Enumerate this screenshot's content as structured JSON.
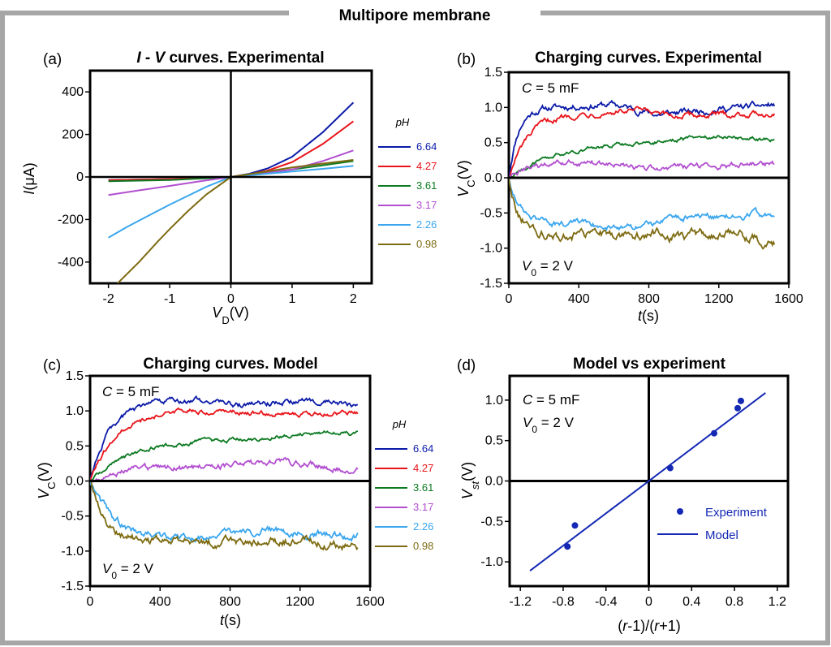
{
  "figure_title": "Multipore membrane",
  "colors": {
    "frame": "#a6a6a6",
    "ph_6_64": "#0a1aa8",
    "ph_4_27": "#e8141a",
    "ph_3_61": "#0d7a22",
    "ph_3_17": "#b24fd0",
    "ph_2_26": "#3aa6ee",
    "ph_0_98": "#7d6b12",
    "model_vs_experiment": "#1428b4"
  },
  "panels": [
    {
      "letter": "(a)",
      "title_italic": "I - V",
      "title": " curves. Experimental",
      "xlabel": "V",
      "xlabel_sub": "D",
      "xlabel_unit": "(V)",
      "ylabel": "I",
      "ylabel_unit": "(μA)",
      "legend_title": "pH"
    },
    {
      "letter": "(b)",
      "title": "Charging curves. Experimental",
      "xlabel": "t",
      "xlabel_unit": "(s)",
      "ylabel": "V",
      "ylabel_sub": "C",
      "ylabel_unit": "(V)",
      "annot_top_italic": "C",
      "annot_top": " = 5 mF",
      "annot_bottom": "V",
      "annot_bottom_sub": "0",
      "annot_bottom_rest": " = 2 V"
    },
    {
      "letter": "(c)",
      "title": "Charging curves. Model",
      "xlabel": "t",
      "xlabel_unit": "(s)",
      "ylabel": "V",
      "ylabel_sub": "C",
      "ylabel_unit": "(V)",
      "annot_top_italic": "C",
      "annot_top": " = 5 mF",
      "annot_bottom": "V",
      "annot_bottom_sub": "0",
      "annot_bottom_rest": " = 2 V",
      "legend_title": "pH"
    },
    {
      "letter": "(d)",
      "title": "Model vs experiment",
      "xlabel_p1": "(",
      "xlabel_r1": "r",
      "xlabel_p2": "-1)/(",
      "xlabel_r2": "r",
      "xlabel_p3": "+1)",
      "ylabel": "V",
      "ylabel_sub": "st",
      "ylabel_unit": "(V)",
      "annot_top_italic": "C",
      "annot_top": " = 5 mF",
      "annot_bottom": "V",
      "annot_bottom_sub": "0",
      "annot_bottom_rest": " = 2 V",
      "legend_points": "Experiment",
      "legend_line": "Model"
    }
  ],
  "chart_data": [
    {
      "type": "line",
      "xlim": [
        -2.3,
        2.3
      ],
      "ylim": [
        -500,
        500
      ],
      "xticks": [
        "-2",
        "-1",
        "0",
        "1",
        "2"
      ],
      "xtick_values": [
        -2,
        -1,
        0,
        1,
        2
      ],
      "yticks": [
        "400",
        "200",
        "0",
        "-200",
        "-400"
      ],
      "ytick_values": [
        400,
        200,
        0,
        -200,
        -400
      ],
      "series": [
        {
          "name": "6.64",
          "color": "#0a1aa8",
          "points": [
            [
              -2,
              -15
            ],
            [
              -1,
              -10
            ],
            [
              -0.3,
              -4
            ],
            [
              0,
              0
            ],
            [
              0.3,
              15
            ],
            [
              0.6,
              40
            ],
            [
              1,
              95
            ],
            [
              1.5,
              210
            ],
            [
              2,
              350
            ]
          ]
        },
        {
          "name": "4.27",
          "color": "#e8141a",
          "points": [
            [
              -2,
              -15
            ],
            [
              -1,
              -10
            ],
            [
              -0.3,
              -4
            ],
            [
              0,
              0
            ],
            [
              0.3,
              12
            ],
            [
              0.6,
              30
            ],
            [
              1,
              70
            ],
            [
              1.5,
              155
            ],
            [
              2,
              262
            ]
          ]
        },
        {
          "name": "3.61",
          "color": "#0d7a22",
          "points": [
            [
              -2,
              -20
            ],
            [
              -1,
              -14
            ],
            [
              -0.3,
              -5
            ],
            [
              0,
              0
            ],
            [
              0.3,
              10
            ],
            [
              0.6,
              20
            ],
            [
              1,
              35
            ],
            [
              1.5,
              55
            ],
            [
              2,
              75
            ]
          ]
        },
        {
          "name": "3.17",
          "color": "#b24fd0",
          "points": [
            [
              -2,
              -85
            ],
            [
              -1.5,
              -63
            ],
            [
              -1,
              -42
            ],
            [
              -0.5,
              -20
            ],
            [
              0,
              0
            ],
            [
              0.5,
              14
            ],
            [
              1,
              35
            ],
            [
              1.5,
              75
            ],
            [
              2,
              125
            ]
          ]
        },
        {
          "name": "2.26",
          "color": "#3aa6ee",
          "points": [
            [
              -2,
              -285
            ],
            [
              -1.7,
              -235
            ],
            [
              -1.3,
              -175
            ],
            [
              -1,
              -130
            ],
            [
              -0.7,
              -88
            ],
            [
              -0.4,
              -46
            ],
            [
              0,
              0
            ],
            [
              0.5,
              13
            ],
            [
              1,
              26
            ],
            [
              1.5,
              38
            ],
            [
              2,
              52
            ]
          ]
        },
        {
          "name": "0.98",
          "color": "#7d6b12",
          "points": [
            [
              -1.85,
              -500
            ],
            [
              -1.5,
              -400
            ],
            [
              -1.2,
              -305
            ],
            [
              -1,
              -245
            ],
            [
              -0.7,
              -160
            ],
            [
              -0.4,
              -82
            ],
            [
              0,
              0
            ],
            [
              0.5,
              22
            ],
            [
              1,
              45
            ],
            [
              1.5,
              63
            ],
            [
              2,
              80
            ]
          ]
        }
      ]
    },
    {
      "type": "line",
      "xlim": [
        0,
        1600
      ],
      "ylim": [
        -1.5,
        1.5
      ],
      "xticks": [
        "0",
        "400",
        "800",
        "1200",
        "1600"
      ],
      "xtick_values": [
        0,
        400,
        800,
        1200,
        1600
      ],
      "yticks": [
        "1.5",
        "1.0",
        "0.5",
        "0.0",
        "-0.5",
        "-1.0",
        "-1.5"
      ],
      "ytick_values": [
        1.5,
        1.0,
        0.5,
        0.0,
        -0.5,
        -1.0,
        -1.5
      ],
      "t_end": 1520,
      "series": [
        {
          "name": "6.64",
          "color": "#0a1aa8",
          "final": 0.98,
          "tau": 50,
          "noise": 0.04,
          "drift": [
            [
              0,
              0
            ],
            [
              600,
              0.06
            ],
            [
              850,
              -0.08
            ],
            [
              1200,
              0
            ],
            [
              1500,
              0.05
            ]
          ]
        },
        {
          "name": "4.27",
          "color": "#e8141a",
          "final": 0.9,
          "tau": 110,
          "noise": 0.035,
          "drift": [
            [
              0,
              0
            ],
            [
              750,
              0.05
            ],
            [
              900,
              -0.03
            ],
            [
              1500,
              0.02
            ]
          ]
        },
        {
          "name": "3.61",
          "color": "#0d7a22",
          "final": 0.58,
          "tau": 350,
          "noise": 0.025,
          "drift": [
            [
              0,
              0
            ],
            [
              800,
              -0.02
            ],
            [
              1200,
              0.04
            ],
            [
              1500,
              -0.03
            ]
          ]
        },
        {
          "name": "3.17",
          "color": "#b24fd0",
          "final": 0.18,
          "tau": 120,
          "noise": 0.035,
          "drift": [
            [
              0,
              0
            ],
            [
              450,
              0.04
            ],
            [
              800,
              -0.05
            ],
            [
              1500,
              0.02
            ]
          ]
        },
        {
          "name": "2.26",
          "color": "#3aa6ee",
          "final": -0.62,
          "tau": 60,
          "noise": 0.04,
          "drift": [
            [
              0,
              0
            ],
            [
              700,
              -0.08
            ],
            [
              1000,
              0.05
            ],
            [
              1500,
              0.1
            ]
          ]
        },
        {
          "name": "0.98",
          "color": "#7d6b12",
          "final": -0.82,
          "tau": 60,
          "noise": 0.06,
          "drift": [
            [
              0,
              0
            ],
            [
              700,
              0
            ],
            [
              1200,
              0.02
            ],
            [
              1500,
              -0.08
            ]
          ]
        }
      ]
    },
    {
      "type": "line",
      "xlim": [
        0,
        1600
      ],
      "ylim": [
        -1.5,
        1.5
      ],
      "xticks": [
        "0",
        "400",
        "800",
        "1200",
        "1600"
      ],
      "xtick_values": [
        0,
        400,
        800,
        1200,
        1600
      ],
      "yticks": [
        "1.5",
        "1.0",
        "0.5",
        "0.0",
        "-0.5",
        "-1.0",
        "-1.5"
      ],
      "ytick_values": [
        1.5,
        1.0,
        0.5,
        0.0,
        -0.5,
        -1.0,
        -1.5
      ],
      "t_end": 1530,
      "series": [
        {
          "name": "6.64",
          "color": "#0a1aa8",
          "final": 1.1,
          "tau": 110,
          "noise": 0.035,
          "drift": [
            [
              0,
              0
            ],
            [
              600,
              0.06
            ],
            [
              900,
              -0.03
            ],
            [
              1200,
              0.04
            ],
            [
              1500,
              -0.02
            ]
          ]
        },
        {
          "name": "4.27",
          "color": "#e8141a",
          "final": 1.0,
          "tau": 150,
          "noise": 0.03,
          "drift": [
            [
              0,
              0
            ],
            [
              600,
              0.03
            ],
            [
              1000,
              -0.04
            ],
            [
              1500,
              -0.03
            ]
          ]
        },
        {
          "name": "3.61",
          "color": "#0d7a22",
          "final": 0.65,
          "tau": 250,
          "noise": 0.025,
          "drift": [
            [
              0,
              0
            ],
            [
              900,
              -0.05
            ],
            [
              1300,
              0.06
            ],
            [
              1500,
              0.03
            ]
          ]
        },
        {
          "name": "3.17",
          "color": "#b24fd0",
          "final": 0.18,
          "tau": 120,
          "noise": 0.04,
          "drift": [
            [
              0,
              0
            ],
            [
              600,
              0
            ],
            [
              1100,
              0.1
            ],
            [
              1500,
              -0.02
            ]
          ]
        },
        {
          "name": "2.26",
          "color": "#3aa6ee",
          "final": -0.8,
          "tau": 130,
          "noise": 0.045,
          "drift": [
            [
              0,
              0
            ],
            [
              500,
              -0.05
            ],
            [
              1000,
              0.1
            ],
            [
              1300,
              0.05
            ],
            [
              1500,
              0
            ]
          ]
        },
        {
          "name": "0.98",
          "color": "#7d6b12",
          "final": -0.88,
          "tau": 100,
          "noise": 0.055,
          "drift": [
            [
              0,
              0
            ],
            [
              600,
              0
            ],
            [
              1200,
              0.03
            ],
            [
              1500,
              -0.05
            ]
          ]
        }
      ]
    },
    {
      "type": "scatter",
      "xlim": [
        -1.3,
        1.3
      ],
      "ylim": [
        -1.3,
        1.3
      ],
      "xticks": [
        "-1.2",
        "-0.8",
        "-0.4",
        "0",
        "0.4",
        "0.8",
        "1.2"
      ],
      "xtick_values": [
        -1.2,
        -0.8,
        -0.4,
        0,
        0.4,
        0.8,
        1.2
      ],
      "yticks": [
        "1.0",
        "0.5",
        "0.0",
        "-0.5",
        "-1.0"
      ],
      "ytick_values": [
        1.0,
        0.5,
        0.0,
        -0.5,
        -1.0
      ],
      "points_name": "Experiment",
      "line_name": "Model",
      "points": [
        [
          -0.76,
          -0.81
        ],
        [
          -0.69,
          -0.55
        ],
        [
          0.2,
          0.16
        ],
        [
          0.61,
          0.59
        ],
        [
          0.83,
          0.9
        ],
        [
          0.86,
          0.99
        ]
      ],
      "model_line": {
        "slope": 1,
        "x_range": [
          -1.11,
          1.09
        ]
      }
    }
  ]
}
